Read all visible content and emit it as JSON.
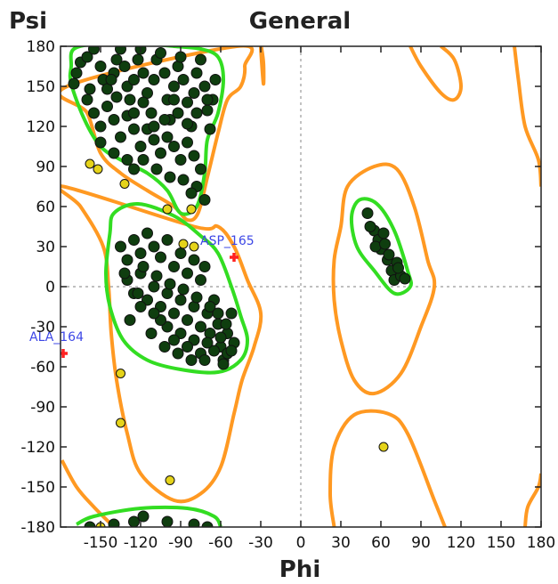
{
  "chart_data": {
    "type": "scatter",
    "title": "General",
    "xlabel": "Phi",
    "ylabel": "Psi",
    "xlim": [
      -180,
      180
    ],
    "ylim": [
      -180,
      180
    ],
    "xticks": [
      -150,
      -120,
      -90,
      -60,
      -30,
      0,
      30,
      60,
      90,
      120,
      150,
      180
    ],
    "yticks": [
      180,
      150,
      120,
      90,
      60,
      30,
      0,
      -30,
      -60,
      -90,
      -120,
      -150,
      -180
    ],
    "zero_lines": true,
    "contours": {
      "favored_color": "#33dd22",
      "allowed_color": "#ff9922",
      "favored_regions": [
        [
          [
            -172,
            152
          ],
          [
            -172,
            165
          ],
          [
            -170,
            178
          ],
          [
            -150,
            182
          ],
          [
            -120,
            182
          ],
          [
            -95,
            180
          ],
          [
            -75,
            178
          ],
          [
            -62,
            172
          ],
          [
            -58,
            155
          ],
          [
            -62,
            130
          ],
          [
            -70,
            110
          ],
          [
            -72,
            85
          ],
          [
            -78,
            60
          ],
          [
            -90,
            55
          ],
          [
            -100,
            72
          ],
          [
            -115,
            85
          ],
          [
            -135,
            95
          ],
          [
            -150,
            105
          ],
          [
            -162,
            125
          ]
        ],
        [
          [
            -143,
            40
          ],
          [
            -140,
            55
          ],
          [
            -122,
            62
          ],
          [
            -95,
            53
          ],
          [
            -75,
            38
          ],
          [
            -62,
            25
          ],
          [
            -52,
            0
          ],
          [
            -45,
            -22
          ],
          [
            -40,
            -40
          ],
          [
            -45,
            -55
          ],
          [
            -62,
            -64
          ],
          [
            -90,
            -62
          ],
          [
            -115,
            -55
          ],
          [
            -133,
            -40
          ],
          [
            -143,
            -15
          ],
          [
            -146,
            10
          ]
        ],
        [
          [
            -168,
            -178
          ],
          [
            -155,
            -172
          ],
          [
            -120,
            -166
          ],
          [
            -85,
            -166
          ],
          [
            -65,
            -172
          ],
          [
            -60,
            -180
          ]
        ],
        [
          [
            38,
            52
          ],
          [
            44,
            65
          ],
          [
            57,
            62
          ],
          [
            70,
            42
          ],
          [
            80,
            12
          ],
          [
            82,
            0
          ],
          [
            70,
            -5
          ],
          [
            55,
            12
          ],
          [
            42,
            30
          ]
        ]
      ],
      "allowed_regions": [
        [
          [
            -175,
            150
          ],
          [
            -160,
            130
          ],
          [
            -150,
            100
          ],
          [
            -135,
            85
          ],
          [
            -115,
            72
          ],
          [
            -95,
            60
          ],
          [
            -85,
            50
          ],
          [
            -77,
            55
          ],
          [
            -70,
            82
          ],
          [
            -62,
            115
          ],
          [
            -55,
            140
          ],
          [
            -45,
            150
          ],
          [
            -42,
            165
          ],
          [
            -48,
            180
          ]
        ],
        [
          [
            -178,
            75
          ],
          [
            -165,
            60
          ],
          [
            -148,
            30
          ],
          [
            -144,
            0
          ],
          [
            -142,
            -35
          ],
          [
            -138,
            -70
          ],
          [
            -130,
            -110
          ],
          [
            -120,
            -140
          ],
          [
            -95,
            -160
          ],
          [
            -75,
            -155
          ],
          [
            -60,
            -135
          ],
          [
            -50,
            -95
          ],
          [
            -44,
            -70
          ],
          [
            -35,
            -45
          ],
          [
            -30,
            -20
          ],
          [
            -40,
            5
          ],
          [
            -50,
            30
          ],
          [
            -62,
            45
          ],
          [
            -80,
            45
          ]
        ],
        [
          [
            -179,
            -130
          ],
          [
            -168,
            -150
          ],
          [
            -155,
            -165
          ],
          [
            -140,
            -180
          ]
        ],
        [
          [
            -30,
            180
          ],
          [
            -28,
            168
          ],
          [
            -28,
            152
          ]
        ],
        [
          [
            30,
            45
          ],
          [
            35,
            75
          ],
          [
            55,
            90
          ],
          [
            72,
            88
          ],
          [
            85,
            60
          ],
          [
            95,
            20
          ],
          [
            100,
            0
          ],
          [
            90,
            -30
          ],
          [
            75,
            -65
          ],
          [
            55,
            -80
          ],
          [
            40,
            -70
          ],
          [
            30,
            -40
          ],
          [
            25,
            -10
          ],
          [
            25,
            20
          ]
        ],
        [
          [
            25,
            -180
          ],
          [
            22,
            -155
          ],
          [
            25,
            -120
          ],
          [
            40,
            -96
          ],
          [
            65,
            -95
          ],
          [
            80,
            -110
          ],
          [
            100,
            -160
          ],
          [
            108,
            -180
          ]
        ],
        [
          [
            82,
            180
          ],
          [
            90,
            165
          ],
          [
            105,
            145
          ],
          [
            115,
            140
          ],
          [
            120,
            150
          ],
          [
            115,
            170
          ],
          [
            105,
            180
          ]
        ],
        [
          [
            160,
            180
          ],
          [
            163,
            155
          ],
          [
            168,
            120
          ],
          [
            178,
            95
          ],
          [
            180,
            75
          ]
        ],
        [
          [
            168,
            -180
          ],
          [
            170,
            -165
          ],
          [
            178,
            -150
          ],
          [
            180,
            -140
          ]
        ]
      ]
    },
    "series": [
      {
        "name": "",
        "color": "#0f3e0f",
        "points": [
          [
            -170,
            152
          ],
          [
            -168,
            160
          ],
          [
            -165,
            168
          ],
          [
            -160,
            172
          ],
          [
            -155,
            178
          ],
          [
            -150,
            165
          ],
          [
            -148,
            155
          ],
          [
            -145,
            148
          ],
          [
            -140,
            160
          ],
          [
            -138,
            170
          ],
          [
            -135,
            178
          ],
          [
            -132,
            165
          ],
          [
            -130,
            150
          ],
          [
            -128,
            140
          ],
          [
            -125,
            155
          ],
          [
            -122,
            170
          ],
          [
            -120,
            178
          ],
          [
            -118,
            160
          ],
          [
            -115,
            145
          ],
          [
            -112,
            130
          ],
          [
            -110,
            155
          ],
          [
            -108,
            170
          ],
          [
            -105,
            175
          ],
          [
            -102,
            160
          ],
          [
            -100,
            140
          ],
          [
            -98,
            125
          ],
          [
            -95,
            150
          ],
          [
            -92,
            165
          ],
          [
            -90,
            172
          ],
          [
            -88,
            155
          ],
          [
            -85,
            138
          ],
          [
            -82,
            120
          ],
          [
            -80,
            145
          ],
          [
            -78,
            160
          ],
          [
            -75,
            170
          ],
          [
            -72,
            150
          ],
          [
            -70,
            132
          ],
          [
            -68,
            118
          ],
          [
            -66,
            140
          ],
          [
            -64,
            155
          ],
          [
            -160,
            140
          ],
          [
            -155,
            130
          ],
          [
            -150,
            120
          ],
          [
            -145,
            135
          ],
          [
            -140,
            125
          ],
          [
            -135,
            112
          ],
          [
            -130,
            128
          ],
          [
            -125,
            118
          ],
          [
            -120,
            105
          ],
          [
            -115,
            118
          ],
          [
            -110,
            110
          ],
          [
            -105,
            100
          ],
          [
            -100,
            112
          ],
          [
            -95,
            105
          ],
          [
            -90,
            95
          ],
          [
            -85,
            108
          ],
          [
            -80,
            98
          ],
          [
            -75,
            88
          ],
          [
            -78,
            75
          ],
          [
            -72,
            65
          ],
          [
            -130,
            95
          ],
          [
            -125,
            88
          ],
          [
            -118,
            95
          ],
          [
            -108,
            88
          ],
          [
            -98,
            82
          ],
          [
            -88,
            80
          ],
          [
            -82,
            70
          ],
          [
            -140,
            100
          ],
          [
            -150,
            108
          ],
          [
            -158,
            148
          ],
          [
            -142,
            155
          ],
          [
            -118,
            138
          ],
          [
            -102,
            125
          ],
          [
            -92,
            130
          ],
          [
            -85,
            122
          ],
          [
            -78,
            130
          ],
          [
            -70,
            140
          ],
          [
            -95,
            140
          ],
          [
            -110,
            120
          ],
          [
            -125,
            130
          ],
          [
            -138,
            142
          ],
          [
            -135,
            30
          ],
          [
            -130,
            20
          ],
          [
            -125,
            35
          ],
          [
            -120,
            25
          ],
          [
            -115,
            40
          ],
          [
            -110,
            30
          ],
          [
            -105,
            22
          ],
          [
            -100,
            35
          ],
          [
            -95,
            15
          ],
          [
            -90,
            25
          ],
          [
            -85,
            10
          ],
          [
            -80,
            20
          ],
          [
            -75,
            5
          ],
          [
            -72,
            15
          ],
          [
            -130,
            5
          ],
          [
            -125,
            -5
          ],
          [
            -120,
            10
          ],
          [
            -115,
            -10
          ],
          [
            -110,
            0
          ],
          [
            -105,
            -15
          ],
          [
            -100,
            -5
          ],
          [
            -95,
            -20
          ],
          [
            -90,
            -10
          ],
          [
            -85,
            -25
          ],
          [
            -80,
            -15
          ],
          [
            -75,
            -30
          ],
          [
            -70,
            -20
          ],
          [
            -68,
            -35
          ],
          [
            -65,
            -10
          ],
          [
            -62,
            -28
          ],
          [
            -60,
            -45
          ],
          [
            -58,
            -55
          ],
          [
            -55,
            -35
          ],
          [
            -52,
            -20
          ],
          [
            -50,
            -42
          ],
          [
            -55,
            -50
          ],
          [
            -60,
            -38
          ],
          [
            -65,
            -48
          ],
          [
            -70,
            -42
          ],
          [
            -75,
            -50
          ],
          [
            -80,
            -40
          ],
          [
            -85,
            -45
          ],
          [
            -90,
            -35
          ],
          [
            -95,
            -40
          ],
          [
            -100,
            -30
          ],
          [
            -105,
            -25
          ],
          [
            -110,
            -20
          ],
          [
            -120,
            -15
          ],
          [
            -128,
            -25
          ],
          [
            -132,
            10
          ],
          [
            -118,
            15
          ],
          [
            -108,
            8
          ],
          [
            -98,
            2
          ],
          [
            -88,
            -2
          ],
          [
            -78,
            -8
          ],
          [
            -68,
            -15
          ],
          [
            -62,
            -20
          ],
          [
            -56,
            -28
          ],
          [
            -52,
            -48
          ],
          [
            -58,
            -58
          ],
          [
            -72,
            -55
          ],
          [
            -82,
            -55
          ],
          [
            -92,
            -50
          ],
          [
            -102,
            -45
          ],
          [
            -112,
            -35
          ],
          [
            -122,
            -5
          ],
          [
            -158,
            -180
          ],
          [
            -140,
            -178
          ],
          [
            -125,
            -176
          ],
          [
            -118,
            -172
          ],
          [
            -100,
            -176
          ],
          [
            -80,
            -178
          ],
          [
            -70,
            -180
          ],
          [
            50,
            55
          ],
          [
            55,
            42
          ],
          [
            58,
            35
          ],
          [
            62,
            40
          ],
          [
            60,
            28
          ],
          [
            65,
            20
          ],
          [
            68,
            12
          ],
          [
            72,
            18
          ],
          [
            70,
            5
          ],
          [
            75,
            8
          ],
          [
            52,
            45
          ],
          [
            56,
            30
          ],
          [
            63,
            32
          ],
          [
            66,
            24
          ],
          [
            73,
            14
          ],
          [
            78,
            6
          ]
        ]
      },
      {
        "name": "",
        "color": "#e5d31a",
        "points": [
          [
            -158,
            92
          ],
          [
            -152,
            88
          ],
          [
            -132,
            77
          ],
          [
            -100,
            58
          ],
          [
            -82,
            58
          ],
          [
            -88,
            32
          ],
          [
            -80,
            30
          ],
          [
            -135,
            -65
          ],
          [
            -135,
            -102
          ],
          [
            -98,
            -145
          ],
          [
            62,
            -120
          ],
          [
            -150,
            -180
          ]
        ]
      },
      {
        "name": "",
        "color": "#ff2222",
        "points": [
          [
            -50,
            22
          ],
          [
            -178,
            -50
          ]
        ]
      }
    ],
    "annotations": [
      {
        "text": "ASP_165",
        "x": -50,
        "y": 22
      },
      {
        "text": "ALA_164",
        "x": -178,
        "y": -50
      }
    ]
  }
}
